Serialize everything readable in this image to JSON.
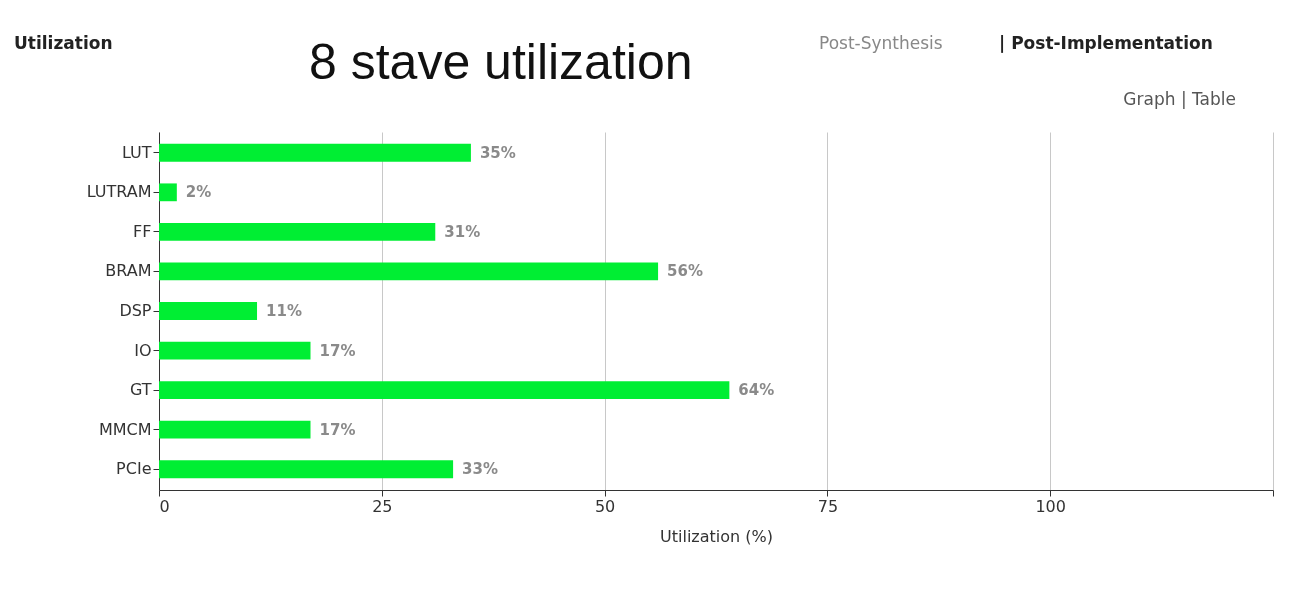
{
  "chart_data": {
    "type": "bar",
    "orientation": "horizontal",
    "title": "8 stave utilization",
    "xlabel": "Utilization (%)",
    "categories": [
      "LUT",
      "LUTRAM",
      "FF",
      "BRAM",
      "DSP",
      "IO",
      "GT",
      "MMCM",
      "PCIe"
    ],
    "values": [
      35,
      2,
      31,
      56,
      11,
      17,
      64,
      17,
      33
    ],
    "value_labels": [
      "35%",
      "2%",
      "31%",
      "56%",
      "11%",
      "17%",
      "64%",
      "17%",
      "33%"
    ],
    "color": "#00ee33",
    "xlim": [
      0,
      125
    ],
    "xticks": [
      0,
      25,
      50,
      75,
      100,
      {
        "value": 125,
        "label": null
      }
    ],
    "grid": "x",
    "annotations": [
      "Utilization",
      "Post-Synthesis",
      "| Post-Implementation",
      "Graph | Table"
    ]
  }
}
